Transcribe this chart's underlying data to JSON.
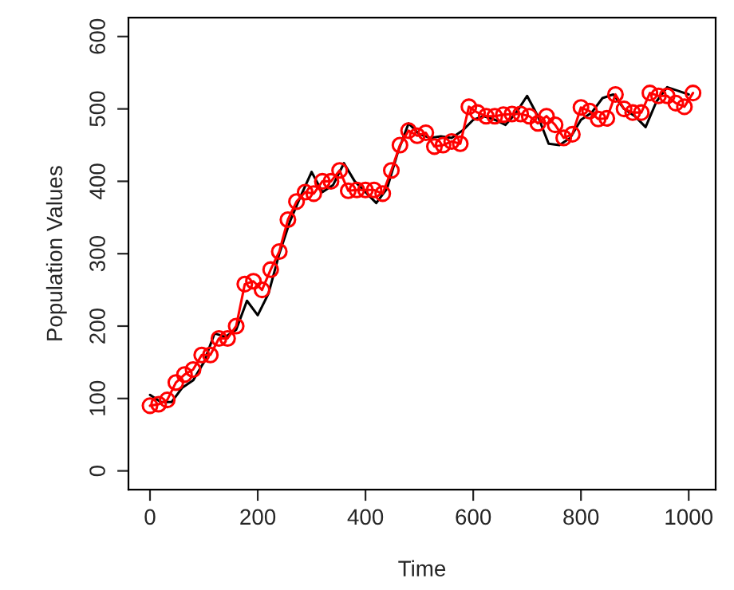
{
  "chart_data": {
    "type": "line",
    "xlabel": "Time",
    "ylabel": "Population Values",
    "xlim": [
      -40,
      1050
    ],
    "ylim": [
      -26,
      626
    ],
    "xticks": [
      0,
      200,
      400,
      600,
      800,
      1000
    ],
    "yticks": [
      0,
      100,
      200,
      300,
      400,
      500,
      600
    ],
    "grid": false,
    "legend": false,
    "series": [
      {
        "color": "#000000",
        "marker": "none",
        "line_style": "solid",
        "x": [
          0,
          20,
          40,
          60,
          80,
          100,
          120,
          140,
          160,
          180,
          200,
          220,
          240,
          260,
          280,
          300,
          320,
          340,
          360,
          380,
          400,
          420,
          440,
          460,
          480,
          500,
          520,
          540,
          560,
          580,
          600,
          620,
          640,
          660,
          680,
          700,
          720,
          740,
          760,
          780,
          800,
          820,
          840,
          860,
          880,
          900,
          920,
          940,
          960,
          980,
          1000
        ],
        "values": [
          105,
          95,
          95,
          115,
          125,
          150,
          190,
          185,
          195,
          235,
          215,
          245,
          300,
          345,
          380,
          413,
          385,
          395,
          425,
          400,
          385,
          370,
          390,
          440,
          480,
          465,
          460,
          462,
          460,
          470,
          485,
          490,
          485,
          478,
          495,
          518,
          490,
          452,
          450,
          460,
          485,
          495,
          515,
          520,
          500,
          490,
          475,
          510,
          530,
          525,
          520
        ]
      },
      {
        "color": "#ff0000",
        "marker": "circle",
        "line_style": "solid",
        "x": [
          0,
          16,
          32,
          48,
          64,
          80,
          96,
          112,
          128,
          144,
          160,
          176,
          192,
          208,
          224,
          240,
          256,
          272,
          288,
          304,
          320,
          336,
          352,
          368,
          384,
          400,
          416,
          432,
          448,
          464,
          480,
          496,
          512,
          528,
          544,
          560,
          576,
          592,
          608,
          624,
          640,
          656,
          672,
          688,
          704,
          720,
          736,
          752,
          768,
          784,
          800,
          816,
          832,
          848,
          864,
          880,
          896,
          912,
          928,
          944,
          960,
          976,
          992,
          1008
        ],
        "values": [
          90,
          92,
          98,
          122,
          133,
          140,
          160,
          160,
          183,
          183,
          200,
          258,
          262,
          250,
          278,
          303,
          347,
          372,
          385,
          383,
          400,
          400,
          415,
          387,
          388,
          388,
          388,
          383,
          415,
          450,
          470,
          463,
          467,
          448,
          450,
          455,
          452,
          503,
          495,
          490,
          490,
          492,
          493,
          493,
          490,
          480,
          490,
          478,
          460,
          465,
          502,
          497,
          486,
          487,
          520,
          500,
          495,
          495,
          522,
          518,
          518,
          508,
          503,
          522
        ]
      }
    ]
  }
}
